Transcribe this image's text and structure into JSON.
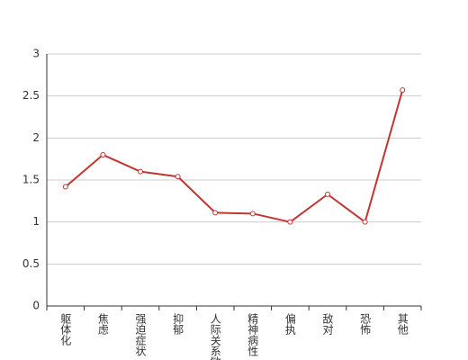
{
  "chart_data": {
    "type": "line",
    "categories": [
      "躯体化",
      "焦虑",
      "强迫症状",
      "抑郁",
      "人际关系敏感",
      "精神病性",
      "偏执",
      "敌对",
      "恐怖",
      "其他"
    ],
    "values": [
      1.42,
      1.8,
      1.6,
      1.54,
      1.11,
      1.1,
      1.0,
      1.33,
      1.0,
      2.57
    ],
    "color": "#c23531",
    "ylim": [
      0,
      3
    ],
    "yticks": [
      0,
      0.5,
      1,
      1.5,
      2,
      2.5,
      3
    ],
    "grid": true
  }
}
